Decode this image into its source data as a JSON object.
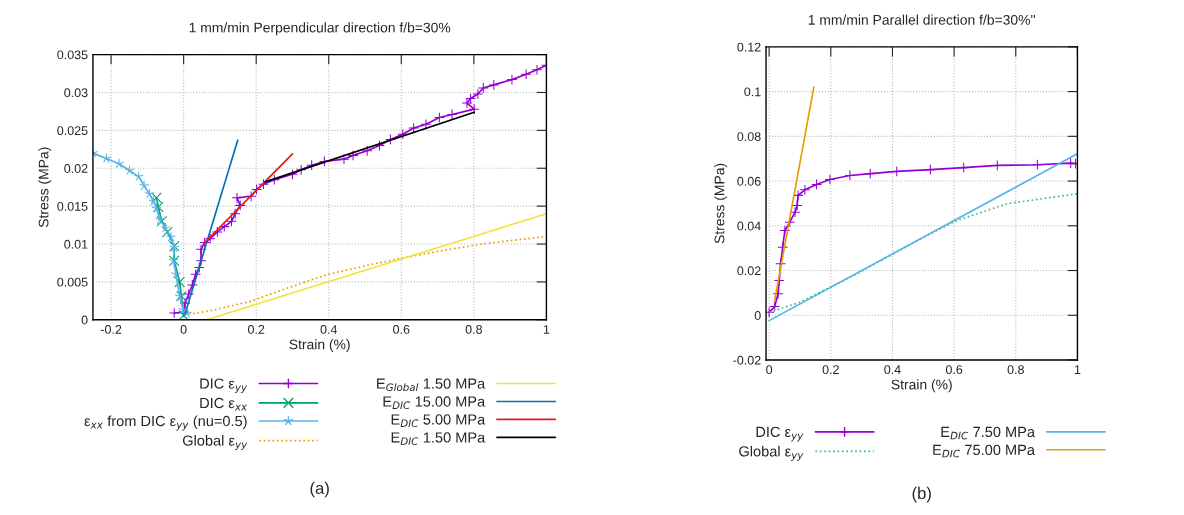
{
  "chart_data": [
    {
      "type": "line",
      "title": "1 mm/min Perpendicular direction f/b=30%",
      "xlabel": "Strain (%)",
      "ylabel": "Stress (MPa)",
      "xlim": [
        -0.25,
        1
      ],
      "ylim": [
        0,
        0.035
      ],
      "xticks": [
        -0.2,
        0,
        0.2,
        0.4,
        0.6,
        0.8,
        1
      ],
      "yticks": [
        0,
        0.005,
        0.01,
        0.015,
        0.02,
        0.025,
        0.03,
        0.035
      ],
      "grid": true,
      "legend": "bottom",
      "annotations": [
        "(a)"
      ],
      "series": [
        {
          "name": "DIC ε$_{yy}$",
          "color": "#9400d3",
          "marker": "plus",
          "x": [
            -0.026,
            0,
            0.004,
            0.014,
            0.024,
            0.033,
            0.043,
            0.048,
            0.048,
            0.058,
            0.073,
            0.093,
            0.112,
            0.132,
            0.142,
            0.156,
            0.147,
            0.186,
            0.201,
            0.22,
            0.25,
            0.3,
            0.324,
            0.353,
            0.388,
            0.442,
            0.467,
            0.506,
            0.54,
            0.57,
            0.604,
            0.634,
            0.668,
            0.705,
            0.74,
            0.801,
            0.781,
            0.791,
            0.811,
            0.826,
            0.855,
            0.905,
            0.944,
            0.974,
            1.0
          ],
          "values": [
            0.0009,
            0.001,
            0.0022,
            0.0034,
            0.0046,
            0.006,
            0.0069,
            0.0078,
            0.0093,
            0.0102,
            0.0107,
            0.0116,
            0.0123,
            0.013,
            0.014,
            0.0151,
            0.0161,
            0.0163,
            0.0172,
            0.0179,
            0.0185,
            0.0192,
            0.0198,
            0.0204,
            0.0209,
            0.0212,
            0.0217,
            0.0223,
            0.023,
            0.0238,
            0.0245,
            0.0253,
            0.0258,
            0.0267,
            0.0271,
            0.0278,
            0.0286,
            0.0292,
            0.0298,
            0.0306,
            0.031,
            0.0317,
            0.0324,
            0.033,
            0.0336
          ]
        },
        {
          "name": "DIC ε$_{xx}$",
          "color": "#009e73",
          "marker": "cross",
          "x": [
            0,
            -0.006,
            -0.011,
            -0.026,
            -0.026,
            -0.045,
            -0.06,
            -0.07,
            -0.075
          ],
          "values": [
            0.0006,
            0.0031,
            0.005,
            0.0078,
            0.0097,
            0.0116,
            0.013,
            0.0149,
            0.0161
          ]
        },
        {
          "name": "ε$_{xx}$ from DIC ε$_{yy}$ (nu=0.5)",
          "color": "#56b4e9",
          "marker": "star",
          "x": [
            0.009,
            -0.001,
            -0.011,
            -0.021,
            -0.028,
            -0.026,
            -0.035,
            -0.05,
            -0.065,
            -0.075,
            -0.083,
            -0.094,
            -0.109,
            -0.124,
            -0.149,
            -0.178,
            -0.213,
            -0.25
          ],
          "values": [
            0.0008,
            0.0013,
            0.0031,
            0.006,
            0.0078,
            0.0095,
            0.0109,
            0.0121,
            0.0132,
            0.0147,
            0.0156,
            0.0166,
            0.0177,
            0.0189,
            0.0197,
            0.0206,
            0.0213,
            0.022
          ]
        },
        {
          "name": "Global ε$_{yy}$",
          "color": "#e69f00",
          "line_style": "dotted",
          "x": [
            0.014,
            0.083,
            0.181,
            0.28,
            0.398,
            0.526,
            0.673,
            0.821,
            1.0
          ],
          "values": [
            0.0007,
            0.0013,
            0.0024,
            0.0041,
            0.006,
            0.0074,
            0.0088,
            0.01,
            0.011
          ]
        },
        {
          "name": "E$_{Global}$ 1.50 MPa",
          "color": "#f0e442",
          "x": [
            0.063,
            1.0
          ],
          "values": [
            0,
            0.014
          ]
        },
        {
          "name": "E$_{DIC}$ 15.00 MPa",
          "color": "#0072b2",
          "x": [
            0.004,
            0.149
          ],
          "values": [
            0.0008,
            0.0237
          ]
        },
        {
          "name": "E$_{DIC}$ 5.00 MPa",
          "color": "#e51e10",
          "x": [
            0.058,
            0.3
          ],
          "values": [
            0.0102,
            0.0219
          ]
        },
        {
          "name": "E$_{DIC}$ 1.50 MPa",
          "color": "#000000",
          "x": [
            0.225,
            0.801
          ],
          "values": [
            0.0182,
            0.0274
          ]
        }
      ]
    },
    {
      "type": "line",
      "title": "1 mm/min Parallel direction f/b=30%''",
      "xlabel": "Strain (%)",
      "ylabel": "Stress (MPa)",
      "xlim": [
        -0.01,
        1
      ],
      "ylim": [
        -0.02,
        0.12
      ],
      "xticks": [
        0,
        0.2,
        0.4,
        0.6,
        0.8,
        1
      ],
      "yticks": [
        -0.02,
        0,
        0.02,
        0.04,
        0.06,
        0.08,
        0.1,
        0.12
      ],
      "grid": true,
      "legend": "bottom",
      "annotations": [
        "(b)"
      ],
      "series": [
        {
          "name": "DIC ε$_{yy}$",
          "color": "#9400d3",
          "marker": "plus",
          "x": [
            0,
            0.018,
            0.029,
            0.033,
            0.037,
            0.044,
            0.051,
            0.067,
            0.084,
            0.091,
            0.094,
            0.116,
            0.154,
            0.197,
            0.262,
            0.328,
            0.414,
            0.523,
            0.631,
            0.74,
            0.87,
            0.978,
            0.994
          ],
          "values": [
            0.0013,
            0.0039,
            0.0096,
            0.0155,
            0.023,
            0.0304,
            0.0379,
            0.0416,
            0.0461,
            0.0491,
            0.0536,
            0.0561,
            0.0585,
            0.0607,
            0.0625,
            0.0633,
            0.0643,
            0.0651,
            0.066,
            0.067,
            0.0673,
            0.068,
            0.0678
          ]
        },
        {
          "name": "Global ε$_{yy}$",
          "color": "#2ec27e",
          "line_style": "dotted",
          "x": [
            0,
            0.1,
            0.284,
            0.501,
            0.61,
            0.772,
            1.0
          ],
          "values": [
            0.0013,
            0.0058,
            0.0185,
            0.0349,
            0.0424,
            0.0499,
            0.0543
          ]
        },
        {
          "name": "E$_{DIC}$ 7.50 MPa",
          "color": "#56b4e9",
          "x": [
            0,
            1.0
          ],
          "values": [
            -0.0024,
            0.0722
          ]
        },
        {
          "name": "E$_{DIC}$ 75.00 MPa",
          "color": "#e69f00",
          "x": [
            0.018,
            0.145
          ],
          "values": [
            0.0066,
            0.102
          ]
        }
      ]
    }
  ]
}
